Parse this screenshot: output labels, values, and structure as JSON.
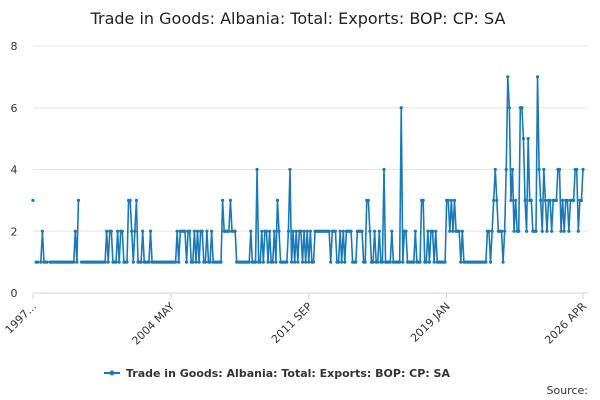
{
  "chart_data": {
    "type": "line",
    "title": "Trade in Goods: Albania: Total: Exports: BOP: CP: SA",
    "source_label": "Source:",
    "categories": [
      "1997...",
      null,
      null,
      null,
      null,
      null,
      null,
      null,
      null,
      null,
      null,
      null,
      null,
      null,
      null,
      null,
      null,
      null,
      null,
      null,
      null,
      null,
      null,
      null,
      null,
      null,
      null,
      null,
      null,
      null,
      null,
      null,
      null,
      null,
      null,
      null,
      null,
      null,
      null,
      null,
      null,
      null,
      null,
      null,
      null,
      null,
      null,
      null,
      null,
      null,
      null,
      null,
      null,
      null,
      null,
      null,
      null,
      null,
      null,
      null,
      null,
      null,
      null,
      null,
      null,
      null,
      null,
      null,
      null,
      null,
      null,
      null,
      null,
      null,
      null,
      null,
      null,
      null,
      null,
      null,
      null,
      null,
      null,
      null,
      null,
      null,
      null,
      null,
      "2004 MAY",
      null,
      null,
      null,
      null,
      null,
      null,
      null,
      null,
      null,
      null,
      null,
      null,
      null,
      null,
      null,
      null,
      null,
      null,
      null,
      null,
      null,
      null,
      null,
      null,
      null,
      null,
      null,
      null,
      null,
      null,
      null,
      null,
      null,
      null,
      null,
      null,
      null,
      null,
      null,
      null,
      null,
      null,
      null,
      null,
      null,
      null,
      null,
      null,
      null,
      null,
      null,
      null,
      null,
      null,
      null,
      null,
      null,
      null,
      null,
      null,
      null,
      null,
      null,
      null,
      null,
      null,
      null,
      null,
      null,
      null,
      null,
      null,
      null,
      null,
      null,
      null,
      null,
      null,
      null,
      null,
      null,
      null,
      null,
      null,
      null,
      null,
      null,
      "2011 SEP",
      null,
      null,
      null,
      null,
      null,
      null,
      null,
      null,
      null,
      null,
      null,
      null,
      null,
      null,
      null,
      null,
      null,
      null,
      null,
      null,
      null,
      null,
      null,
      null,
      null,
      null,
      null,
      null,
      null,
      null,
      null,
      null,
      null,
      null,
      null,
      null,
      null,
      null,
      null,
      null,
      null,
      null,
      null,
      null,
      null,
      null,
      null,
      null,
      null,
      null,
      null,
      null,
      null,
      null,
      null,
      null,
      null,
      null,
      null,
      null,
      null,
      null,
      null,
      null,
      null,
      null,
      null,
      null,
      null,
      null,
      null,
      null,
      null,
      null,
      null,
      null,
      null,
      null,
      null,
      null,
      null,
      null,
      null,
      null,
      null,
      null,
      null,
      "2019 JAN",
      null,
      null,
      null,
      null,
      null,
      null,
      null,
      null,
      null,
      null,
      null,
      null,
      null,
      null,
      null,
      null,
      null,
      null,
      null,
      null,
      null,
      null,
      null,
      null,
      null,
      null,
      null,
      null,
      null,
      null,
      null,
      null,
      null,
      null,
      null,
      null,
      null,
      null,
      null,
      null,
      null,
      null,
      null,
      null,
      null,
      null,
      null,
      null,
      null,
      null,
      null,
      null,
      null,
      null,
      null,
      null,
      null,
      null,
      null,
      null,
      null,
      null,
      null,
      null,
      null,
      null,
      null,
      null,
      null,
      null,
      null,
      null,
      null,
      null,
      null,
      null,
      null,
      null,
      null,
      null,
      null,
      null,
      null,
      null,
      null,
      null,
      "2026 APR"
    ],
    "series": [
      {
        "name": "Trade in Goods: Albania: Total: Exports: BOP: CP: SA",
        "color": "#1a7ab8",
        "values": [
          3,
          null,
          1,
          1,
          null,
          1,
          2,
          1,
          1,
          1,
          null,
          1,
          1,
          1,
          1,
          1,
          1,
          1,
          1,
          1,
          1,
          1,
          1,
          1,
          1,
          1,
          1,
          2,
          1,
          3,
          null,
          1,
          1,
          1,
          1,
          1,
          1,
          1,
          1,
          1,
          1,
          1,
          1,
          1,
          1,
          1,
          1,
          2,
          1,
          2,
          2,
          1,
          1,
          1,
          2,
          1,
          2,
          2,
          1,
          1,
          1,
          3,
          3,
          2,
          1,
          2,
          3,
          1,
          1,
          1,
          2,
          1,
          1,
          1,
          1,
          2,
          1,
          1,
          1,
          1,
          1,
          1,
          1,
          1,
          1,
          1,
          1,
          1,
          1,
          1,
          1,
          1,
          2,
          1,
          2,
          2,
          2,
          2,
          1,
          2,
          2,
          1,
          1,
          2,
          1,
          2,
          1,
          2,
          2,
          1,
          1,
          2,
          1,
          1,
          2,
          1,
          1,
          1,
          1,
          1,
          1,
          3,
          2,
          2,
          2,
          2,
          3,
          2,
          2,
          2,
          1,
          1,
          1,
          1,
          1,
          1,
          1,
          1,
          1,
          2,
          1,
          1,
          1,
          4,
          1,
          1,
          2,
          1,
          2,
          2,
          1,
          2,
          1,
          1,
          2,
          1,
          3,
          2,
          1,
          1,
          1,
          1,
          1,
          2,
          4,
          1,
          2,
          1,
          2,
          1,
          2,
          2,
          1,
          2,
          1,
          2,
          1,
          2,
          1,
          1,
          2,
          2,
          2,
          2,
          2,
          2,
          2,
          2,
          2,
          2,
          1,
          2,
          2,
          2,
          1,
          1,
          2,
          1,
          2,
          1,
          2,
          2,
          2,
          2,
          1,
          1,
          1,
          2,
          2,
          2,
          2,
          1,
          1,
          3,
          3,
          2,
          1,
          1,
          2,
          1,
          1,
          2,
          1,
          1,
          4,
          1,
          1,
          1,
          1,
          2,
          1,
          1,
          1,
          1,
          1,
          6,
          1,
          2,
          2,
          1,
          1,
          1,
          1,
          1,
          2,
          1,
          1,
          1,
          3,
          3,
          1,
          1,
          2,
          1,
          2,
          2,
          1,
          2,
          1,
          1,
          1,
          1,
          1,
          1,
          3,
          3,
          2,
          3,
          2,
          3,
          2,
          2,
          2,
          1,
          2,
          1,
          1,
          1,
          1,
          1,
          1,
          1,
          1,
          1,
          1,
          1,
          1,
          1,
          1,
          1,
          2,
          2,
          1,
          2,
          3,
          4,
          3,
          2,
          2,
          2,
          1,
          2,
          4,
          7,
          6,
          3,
          4,
          2,
          3,
          2,
          2,
          6,
          6,
          5,
          3,
          2,
          5,
          3,
          3,
          2,
          2,
          2,
          7,
          4,
          3,
          2,
          4,
          3,
          2,
          3,
          3,
          2,
          3,
          3,
          3,
          4,
          4,
          2,
          3,
          2,
          3,
          3,
          2,
          3,
          3,
          3,
          4,
          4,
          2,
          3,
          3,
          4
        ]
      }
    ],
    "ylim": [
      0,
      8
    ],
    "yticks": [
      0,
      2,
      4,
      6,
      8
    ],
    "grid": true,
    "legend": "bottom"
  }
}
